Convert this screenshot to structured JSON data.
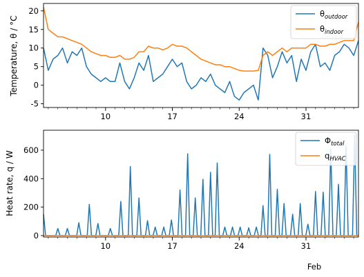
{
  "chart_data": [
    {
      "type": "line",
      "ylabel": "Temperature, θ / °C",
      "ylim": [
        -6,
        22
      ],
      "yticks": [
        -5,
        0,
        5,
        10,
        15,
        20
      ],
      "xlim_day": [
        3.5,
        36.5
      ],
      "xticks": [
        {
          "day": 10,
          "label": "10"
        },
        {
          "day": 17,
          "label": "17"
        },
        {
          "day": 24,
          "label": "24"
        },
        {
          "day": 31,
          "label": "31"
        }
      ],
      "legend_position": "top-right",
      "colors": {
        "outdoor": "#1f77b4",
        "indoor": "#ff7f0e"
      },
      "series": [
        {
          "key": "outdoor",
          "name_main": "θ",
          "name_sub": "outdoor",
          "x": [
            3.5,
            4,
            4.5,
            5,
            5.5,
            6,
            6.5,
            7,
            7.5,
            8,
            8.5,
            9,
            9.5,
            10,
            10.5,
            11,
            11.5,
            12,
            12.5,
            13,
            13.5,
            14,
            14.5,
            15,
            15.5,
            16,
            16.5,
            17,
            17.5,
            18,
            18.5,
            19,
            19.5,
            20,
            20.5,
            21,
            21.5,
            22,
            22.5,
            23,
            23.5,
            24,
            24.5,
            25,
            25.5,
            26,
            26.5,
            27,
            27.5,
            28,
            28.5,
            29,
            29.5,
            30,
            30.5,
            31,
            31.5,
            32,
            32.5,
            33,
            33.5,
            34,
            34.5,
            35,
            35.5,
            36,
            36.5
          ],
          "values": [
            10,
            4,
            7,
            8,
            10,
            6,
            9,
            8,
            10,
            5,
            3,
            2,
            1,
            2,
            1,
            1,
            6,
            1,
            -1,
            2,
            6,
            4,
            8,
            1,
            2,
            3,
            5,
            7,
            5,
            6,
            1,
            -1,
            0,
            2,
            1,
            3,
            0,
            -1,
            -2,
            1,
            -3,
            -4,
            -2,
            -1,
            0,
            -4,
            10,
            8,
            2,
            5,
            9,
            6,
            8,
            1,
            7,
            4,
            9,
            11,
            5,
            6,
            4,
            8,
            9,
            11,
            10,
            8,
            12
          ]
        },
        {
          "key": "indoor",
          "name_main": "θ",
          "name_sub": "indoor",
          "x": [
            3.5,
            4,
            4.5,
            5,
            5.5,
            6,
            6.5,
            7,
            7.5,
            8,
            8.5,
            9,
            9.5,
            10,
            10.5,
            11,
            11.5,
            12,
            12.5,
            13,
            13.5,
            14,
            14.5,
            15,
            15.5,
            16,
            16.5,
            17,
            17.5,
            18,
            18.5,
            19,
            19.5,
            20,
            20.5,
            21,
            21.5,
            22,
            22.5,
            23,
            23.5,
            24,
            24.5,
            25,
            25.5,
            26,
            26.5,
            27,
            27.5,
            28,
            28.5,
            29,
            29.5,
            30,
            30.5,
            31,
            31.5,
            32,
            32.5,
            33,
            33.5,
            34,
            34.5,
            35,
            35.5,
            36,
            36.5
          ],
          "values": [
            21,
            15,
            14,
            13,
            13,
            12.5,
            12,
            11.5,
            11,
            10,
            9,
            8.5,
            8,
            8,
            7.5,
            7.5,
            8,
            7,
            7,
            7.5,
            9,
            9,
            10.5,
            10,
            10,
            9.5,
            10,
            11,
            10.5,
            10.5,
            10,
            9,
            8,
            7,
            6.5,
            6,
            5.5,
            5.5,
            5,
            5,
            4.5,
            4,
            3.8,
            3.8,
            3.8,
            4,
            8,
            9,
            8,
            9,
            10,
            9,
            10,
            10,
            10,
            10,
            11,
            11,
            10.5,
            10.5,
            11,
            11,
            11.5,
            12,
            12,
            12,
            17
          ]
        }
      ]
    },
    {
      "type": "line",
      "ylabel": "Heat rate, q / W",
      "ylim": [
        -10,
        740
      ],
      "yticks": [
        0,
        200,
        400,
        600
      ],
      "xlim_day": [
        3.5,
        36.5
      ],
      "xticks": [
        {
          "day": 10,
          "label": "10"
        },
        {
          "day": 17,
          "label": "17"
        },
        {
          "day": 24,
          "label": "24"
        },
        {
          "day": 31,
          "label": "31"
        }
      ],
      "month_label": "Feb",
      "legend_position": "top-right",
      "colors": {
        "total": "#1f77b4",
        "hvac": "#ff7f0e"
      },
      "series": [
        {
          "key": "total",
          "name_main": "Φ",
          "name_sub": "total",
          "peaks": [
            [
              3.5,
              150
            ],
            [
              5,
              50
            ],
            [
              6,
              50
            ],
            [
              7.2,
              90
            ],
            [
              8.3,
              220
            ],
            [
              9.2,
              85
            ],
            [
              10.5,
              50
            ],
            [
              11.6,
              240
            ],
            [
              12.6,
              485
            ],
            [
              13.5,
              265
            ],
            [
              14.4,
              105
            ],
            [
              15.2,
              60
            ],
            [
              16.1,
              60
            ],
            [
              16.9,
              110
            ],
            [
              17.8,
              320
            ],
            [
              18.6,
              575
            ],
            [
              19.4,
              265
            ],
            [
              20.2,
              395
            ],
            [
              21,
              445
            ],
            [
              21.7,
              510
            ],
            [
              22.5,
              60
            ],
            [
              23.3,
              60
            ],
            [
              24.1,
              60
            ],
            [
              25,
              55
            ],
            [
              25.8,
              60
            ],
            [
              26.5,
              210
            ],
            [
              27.2,
              570
            ],
            [
              28,
              325
            ],
            [
              28.7,
              225
            ],
            [
              29.6,
              150
            ],
            [
              30.4,
              225
            ],
            [
              31.2,
              80
            ],
            [
              32,
              310
            ],
            [
              32.8,
              305
            ],
            [
              33.6,
              610
            ],
            [
              34.4,
              360
            ],
            [
              35.2,
              630
            ],
            [
              36.1,
              710
            ]
          ]
        },
        {
          "key": "hvac",
          "name_main": "q",
          "name_sub": "HVAC",
          "x": [
            3.5,
            36.5
          ],
          "values": [
            0,
            0
          ]
        }
      ]
    }
  ]
}
